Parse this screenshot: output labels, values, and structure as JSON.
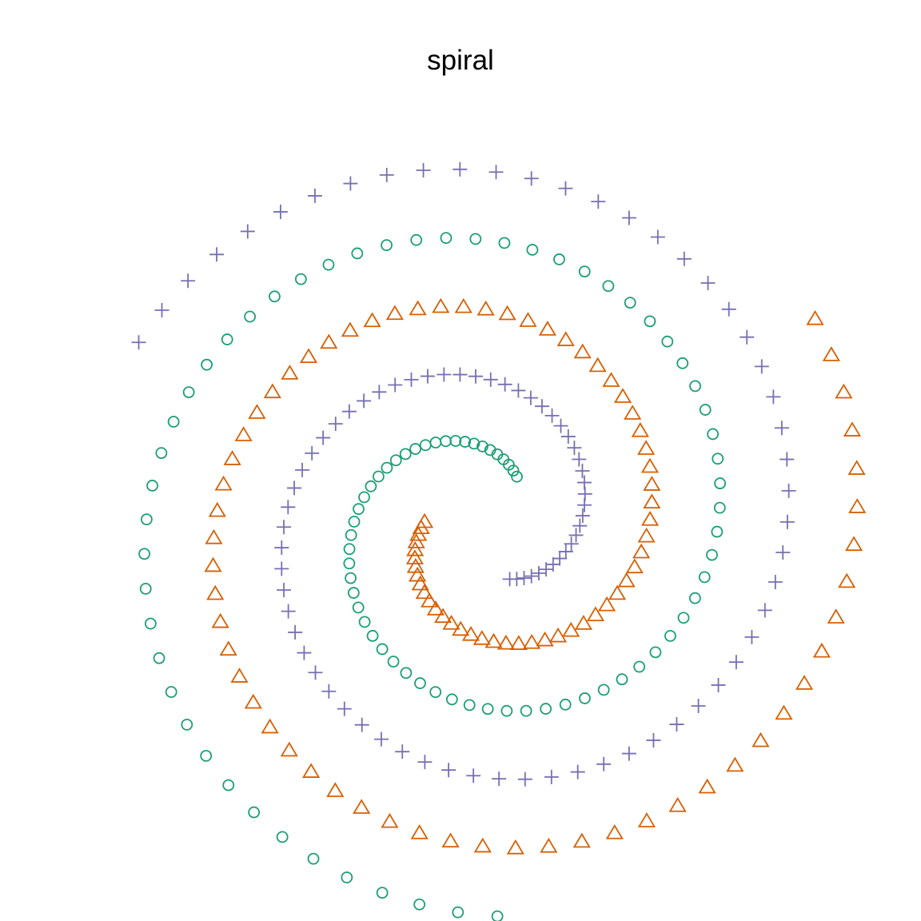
{
  "chart_data": {
    "type": "scatter",
    "title": "spiral",
    "xlabel": "",
    "ylabel": "",
    "axes_visible": false,
    "grid": false,
    "legend": "none",
    "xlim": [
      -0.05,
      1.05
    ],
    "ylim": [
      -0.05,
      1.05
    ],
    "series": [
      {
        "marker": "circle",
        "color": "#1B9E77",
        "spiral": {
          "center": [
            0.5333,
            0.4683
          ],
          "start_angle_deg": 56,
          "turns": 1.6,
          "r_start": 0.085,
          "r_end": 0.56,
          "points": 100
        }
      },
      {
        "marker": "triangle",
        "color": "#D95F02",
        "spiral": {
          "center": [
            0.5333,
            0.4683
          ],
          "start_angle_deg": 176,
          "turns": 1.6,
          "r_start": 0.085,
          "r_end": 0.56,
          "points": 100
        }
      },
      {
        "marker": "plus",
        "color": "#7570B3",
        "spiral": {
          "center": [
            0.5333,
            0.4683
          ],
          "start_angle_deg": 296,
          "turns": 1.6,
          "r_start": 0.085,
          "r_end": 0.56,
          "points": 100
        }
      }
    ]
  }
}
